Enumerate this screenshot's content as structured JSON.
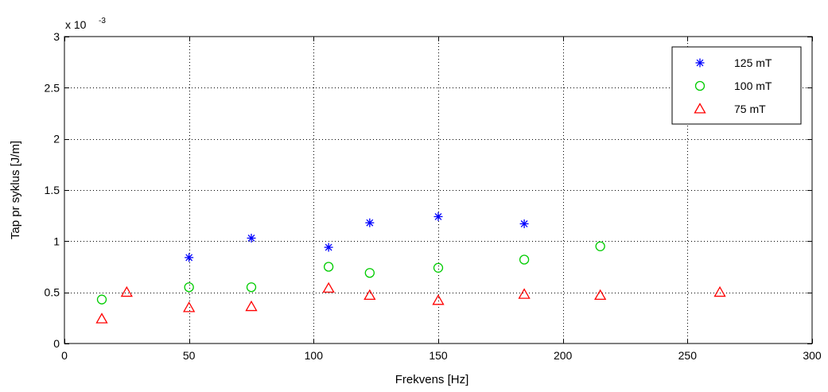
{
  "chart_data": {
    "type": "scatter",
    "title": "",
    "xlabel": "Frekvens [Hz]",
    "ylabel": "Tap pr syklus [J/m]",
    "xlim": [
      0,
      300
    ],
    "ylim": [
      0,
      3
    ],
    "x_ticks": [
      0,
      50,
      100,
      150,
      200,
      250,
      300
    ],
    "y_ticks": [
      0,
      0.5,
      1,
      1.5,
      2,
      2.5,
      3
    ],
    "x_tick_labels": [
      "0",
      "50",
      "100",
      "150",
      "200",
      "250",
      "300"
    ],
    "y_tick_labels": [
      "0",
      "0.5",
      "1",
      "1.5",
      "2",
      "2.5",
      "3"
    ],
    "y_exponent": {
      "base": "x 10",
      "power": "-3"
    },
    "grid": true,
    "legend_position": "top-right",
    "series": [
      {
        "name": "125 mT",
        "marker": "asterisk",
        "color": "#0000ff",
        "points": [
          {
            "x": 50,
            "y": 0.84
          },
          {
            "x": 75,
            "y": 1.03
          },
          {
            "x": 106,
            "y": 0.94
          },
          {
            "x": 122.5,
            "y": 1.18
          },
          {
            "x": 150,
            "y": 1.24
          },
          {
            "x": 184.5,
            "y": 1.17
          }
        ]
      },
      {
        "name": "100 mT",
        "marker": "circle",
        "color": "#00cc00",
        "points": [
          {
            "x": 15,
            "y": 0.43
          },
          {
            "x": 50,
            "y": 0.55
          },
          {
            "x": 75,
            "y": 0.55
          },
          {
            "x": 106,
            "y": 0.75
          },
          {
            "x": 122.5,
            "y": 0.69
          },
          {
            "x": 150,
            "y": 0.74
          },
          {
            "x": 184.5,
            "y": 0.82
          },
          {
            "x": 215,
            "y": 0.95
          }
        ]
      },
      {
        "name": "75 mT",
        "marker": "triangle",
        "color": "#ff0000",
        "points": [
          {
            "x": 15,
            "y": 0.24
          },
          {
            "x": 25,
            "y": 0.5
          },
          {
            "x": 50,
            "y": 0.35
          },
          {
            "x": 75,
            "y": 0.36
          },
          {
            "x": 106,
            "y": 0.54
          },
          {
            "x": 122.5,
            "y": 0.47
          },
          {
            "x": 150,
            "y": 0.42
          },
          {
            "x": 184.5,
            "y": 0.48
          },
          {
            "x": 215,
            "y": 0.47
          },
          {
            "x": 263,
            "y": 0.5
          }
        ]
      }
    ]
  }
}
